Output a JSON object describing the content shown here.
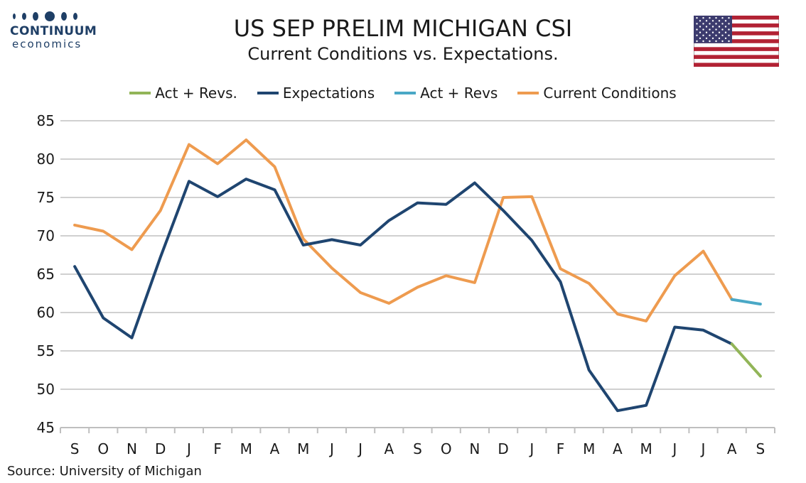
{
  "logo": {
    "name": "CONTINUUM",
    "sub": "economics"
  },
  "header": {
    "title": "US SEP PRELIM MICHIGAN CSI",
    "subtitle": "Current Conditions vs. Expectations."
  },
  "source": "Source: University of Michigan",
  "flag_icon": "us-flag-icon",
  "chart_data": {
    "type": "line",
    "categories": [
      "S",
      "O",
      "N",
      "D",
      "J",
      "F",
      "M",
      "A",
      "M",
      "J",
      "J",
      "A",
      "S",
      "O",
      "N",
      "D",
      "J",
      "F",
      "M",
      "A",
      "M",
      "J",
      "J",
      "A",
      "S"
    ],
    "ylim": [
      45,
      85
    ],
    "yticks": [
      45,
      50,
      55,
      60,
      65,
      70,
      75,
      80,
      85
    ],
    "grid": true,
    "legend_position": "top",
    "series": [
      {
        "name": "Act + Revs.",
        "color": "#92b558",
        "values": [
          null,
          null,
          null,
          null,
          null,
          null,
          null,
          null,
          null,
          null,
          null,
          null,
          null,
          null,
          null,
          null,
          null,
          null,
          null,
          null,
          null,
          null,
          null,
          55.9,
          51.7
        ]
      },
      {
        "name": "Expectations",
        "color": "#1f4570",
        "values": [
          66.0,
          59.3,
          56.7,
          67.2,
          77.1,
          75.1,
          77.4,
          76.0,
          68.8,
          69.5,
          68.8,
          72.0,
          74.3,
          74.1,
          76.9,
          73.3,
          69.4,
          64.0,
          52.5,
          47.2,
          47.9,
          58.1,
          57.7,
          55.9,
          null
        ]
      },
      {
        "name": "Act + Revs",
        "color": "#4aa8c6",
        "values": [
          null,
          null,
          null,
          null,
          null,
          null,
          null,
          null,
          null,
          null,
          null,
          null,
          null,
          null,
          null,
          null,
          null,
          null,
          null,
          null,
          null,
          null,
          null,
          61.7,
          61.1
        ]
      },
      {
        "name": "Current Conditions",
        "color": "#ee9b4f",
        "values": [
          71.4,
          70.6,
          68.2,
          73.3,
          81.9,
          79.4,
          82.5,
          79.0,
          69.6,
          65.8,
          62.6,
          61.2,
          63.3,
          64.8,
          63.9,
          75.0,
          75.1,
          65.7,
          63.8,
          59.8,
          58.9,
          64.8,
          68.0,
          61.7,
          null
        ]
      }
    ]
  }
}
